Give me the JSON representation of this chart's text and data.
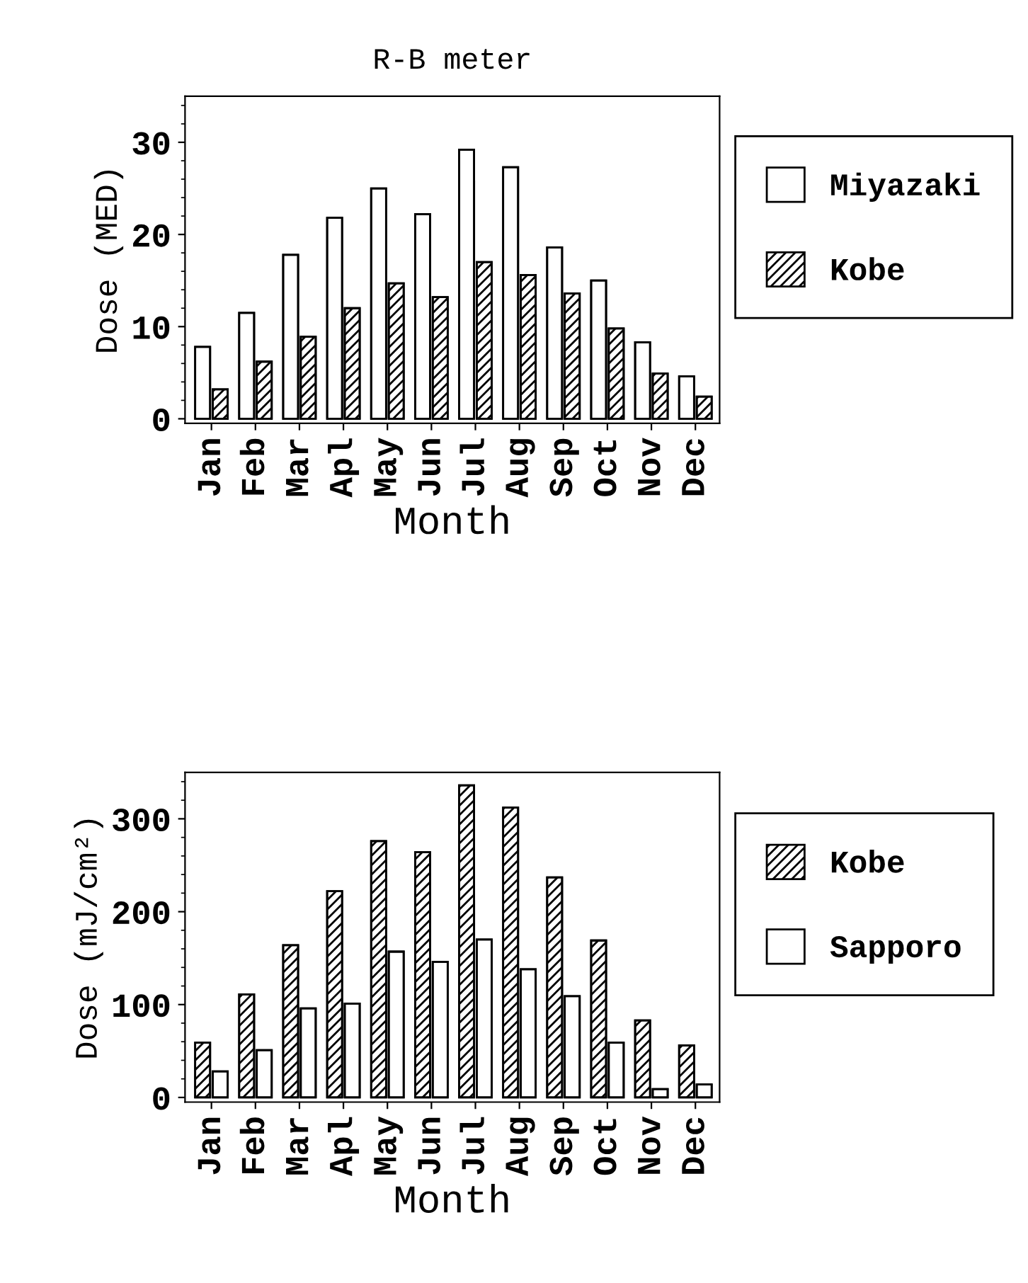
{
  "chart_data": [
    {
      "type": "bar",
      "title": "R-B meter",
      "xlabel": "Month",
      "ylabel": "Dose (MED)",
      "categories": [
        "Jan",
        "Feb",
        "Mar",
        "Apl",
        "May",
        "Jun",
        "Jul",
        "Aug",
        "Sep",
        "Oct",
        "Nov",
        "Dec"
      ],
      "series": [
        {
          "name": "Miyazaki",
          "color": "#ffffff",
          "values": [
            7.8,
            11.5,
            17.8,
            21.8,
            25,
            22.2,
            29.2,
            27.3,
            18.6,
            15,
            8.3,
            4.6
          ]
        },
        {
          "name": "Kobe",
          "color": "#000000",
          "values": [
            3.2,
            6.2,
            8.9,
            12,
            14.7,
            13.2,
            17,
            15.6,
            13.6,
            9.8,
            4.9,
            2.4
          ]
        }
      ],
      "ylim": [
        -0.5,
        35
      ],
      "yticks": [
        0,
        10,
        20,
        30
      ],
      "grid": false,
      "legend": "right"
    },
    {
      "type": "bar",
      "xlabel": "Month",
      "ylabel": "Dose (mJ/cm²)",
      "categories": [
        "Jan",
        "Feb",
        "Mar",
        "Apl",
        "May",
        "Jun",
        "Jul",
        "Aug",
        "Sep",
        "Oct",
        "Nov",
        "Dec"
      ],
      "series": [
        {
          "name": "Kobe",
          "color": "#000000",
          "values": [
            59,
            111,
            164,
            222,
            276,
            264,
            336,
            312,
            237,
            169,
            83,
            56
          ]
        },
        {
          "name": "Sapporo",
          "color": "#ffffff",
          "values": [
            28,
            51,
            96,
            101,
            157,
            146,
            170,
            138,
            109,
            59,
            9,
            14
          ]
        }
      ],
      "ylim": [
        -5,
        350
      ],
      "yticks": [
        0,
        100,
        200,
        300
      ],
      "grid": false,
      "legend": "right"
    }
  ]
}
